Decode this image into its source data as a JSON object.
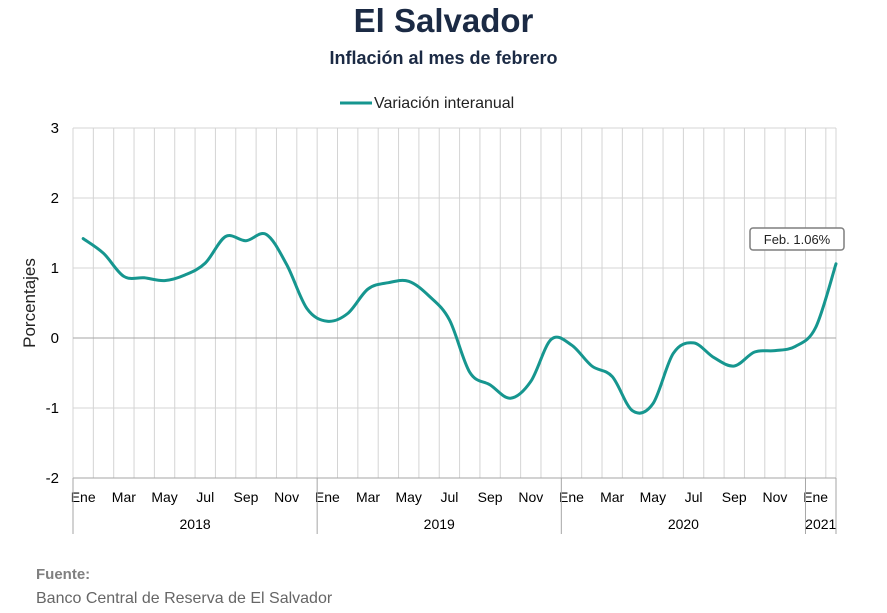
{
  "title": "El Salvador",
  "subtitle": "Inflación al mes de febrero",
  "source": {
    "label": "Fuente:",
    "text": "Banco Central de Reserva de El Salvador"
  },
  "colors": {
    "line": "#16968f",
    "grid": "#d4d4d4",
    "zero_line": "#a6a6a6",
    "axis_text": "#000000",
    "title": "#1b2a44"
  },
  "chart_data": {
    "type": "line",
    "ylabel": "Porcentajes",
    "ylim": [
      -2,
      3
    ],
    "yticks": [
      3,
      2,
      1,
      0,
      -1,
      -2
    ],
    "grid": true,
    "legend": "top-center",
    "months": [
      "2018-01",
      "2018-02",
      "2018-03",
      "2018-04",
      "2018-05",
      "2018-06",
      "2018-07",
      "2018-08",
      "2018-09",
      "2018-10",
      "2018-11",
      "2018-12",
      "2019-01",
      "2019-02",
      "2019-03",
      "2019-04",
      "2019-05",
      "2019-06",
      "2019-07",
      "2019-08",
      "2019-09",
      "2019-10",
      "2019-11",
      "2019-12",
      "2020-01",
      "2020-02",
      "2020-03",
      "2020-04",
      "2020-05",
      "2020-06",
      "2020-07",
      "2020-08",
      "2020-09",
      "2020-10",
      "2020-11",
      "2020-12",
      "2021-01",
      "2021-02"
    ],
    "month_tick_labels": [
      "Ene",
      "",
      "Mar",
      "",
      "May",
      "",
      "Jul",
      "",
      "Sep",
      "",
      "Nov",
      "",
      "Ene",
      "",
      "Mar",
      "",
      "May",
      "",
      "Jul",
      "",
      "Sep",
      "",
      "Nov",
      "",
      "Ene",
      "",
      "Mar",
      "",
      "May",
      "",
      "Jul",
      "",
      "Sep",
      "",
      "Nov",
      "",
      "Ene",
      ""
    ],
    "year_labels": [
      {
        "year": "2018",
        "first_month": 0,
        "month_count": 12
      },
      {
        "year": "2019",
        "first_month": 12,
        "month_count": 12
      },
      {
        "year": "2020",
        "first_month": 24,
        "month_count": 12
      },
      {
        "year": "2021",
        "first_month": 36,
        "month_count": 2
      }
    ],
    "series": [
      {
        "name": "Variación interanual",
        "values": [
          1.42,
          1.21,
          0.88,
          0.86,
          0.82,
          0.9,
          1.07,
          1.45,
          1.39,
          1.48,
          1.05,
          0.42,
          0.24,
          0.35,
          0.7,
          0.79,
          0.81,
          0.6,
          0.26,
          -0.49,
          -0.67,
          -0.86,
          -0.62,
          -0.02,
          -0.1,
          -0.4,
          -0.55,
          -1.04,
          -0.94,
          -0.22,
          -0.07,
          -0.28,
          -0.4,
          -0.2,
          -0.18,
          -0.12,
          0.15,
          1.06
        ]
      }
    ],
    "annotation": {
      "text": "Feb. 1.06%",
      "month_index": 37,
      "value": 1.06
    }
  }
}
